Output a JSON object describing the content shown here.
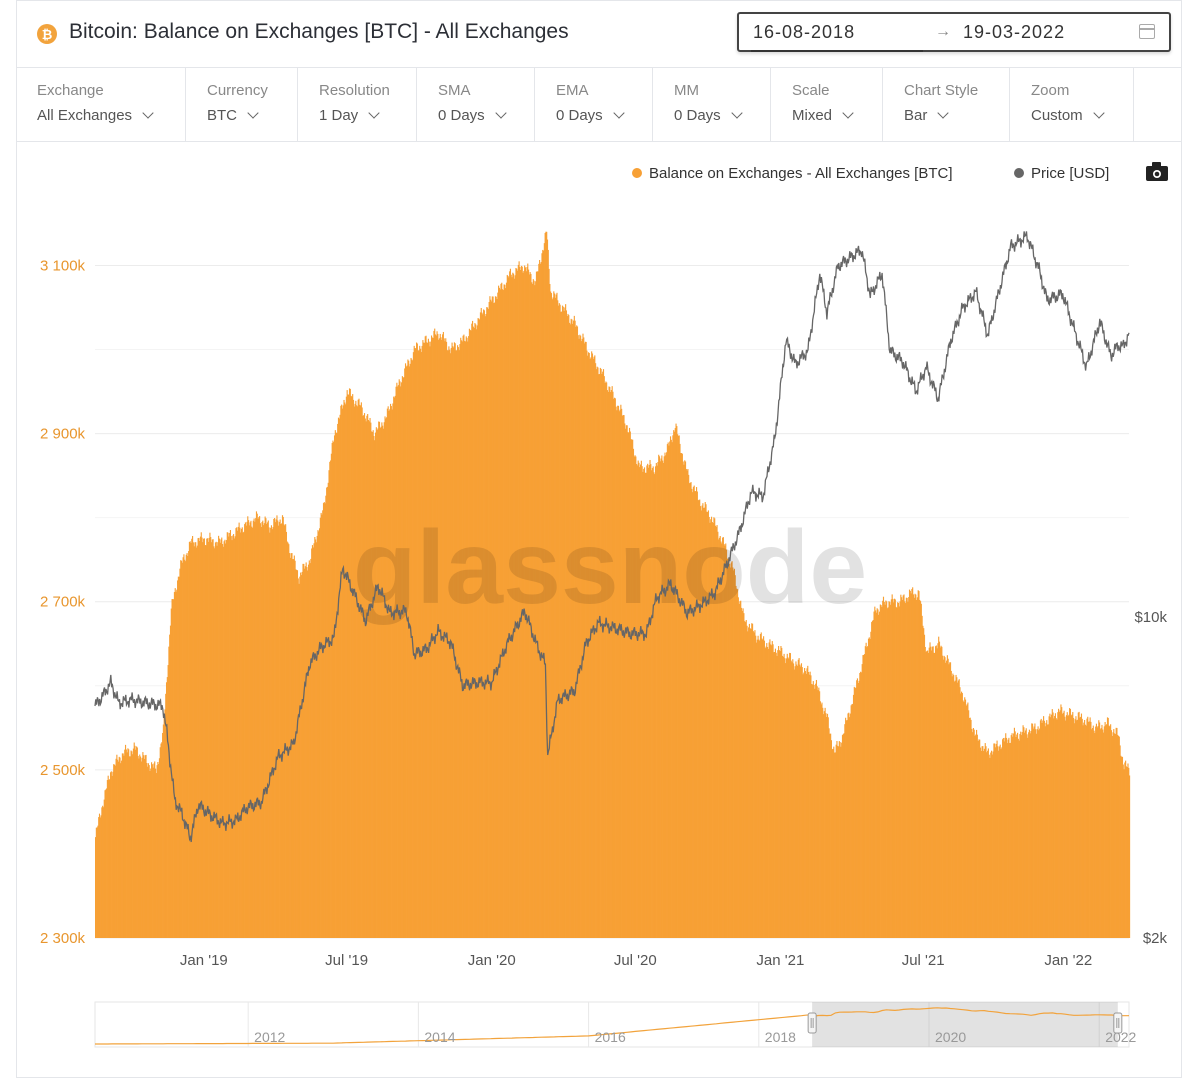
{
  "header": {
    "coin_glyph": "₿",
    "title": "Bitcoin: Balance on Exchanges [BTC] - All Exchanges",
    "date_from": "16-08-2018",
    "date_arrow": "→",
    "date_to": "19-03-2022"
  },
  "controls": [
    {
      "label": "Exchange",
      "value": "All Exchanges"
    },
    {
      "label": "Currency",
      "value": "BTC"
    },
    {
      "label": "Resolution",
      "value": "1 Day"
    },
    {
      "label": "SMA",
      "value": "0 Days"
    },
    {
      "label": "EMA",
      "value": "0 Days"
    },
    {
      "label": "MM",
      "value": "0 Days"
    },
    {
      "label": "Scale",
      "value": "Mixed"
    },
    {
      "label": "Chart Style",
      "value": "Bar"
    },
    {
      "label": "Zoom",
      "value": "Custom"
    }
  ],
  "watermark": "glassnode",
  "chart_data": {
    "type": "bar",
    "legend_position": "top-right",
    "grid": true,
    "left_axis": {
      "ticks": [
        2300000,
        2500000,
        2700000,
        2900000,
        3100000
      ],
      "tick_labels": [
        "2 300k",
        "2 500k",
        "2 700k",
        "2 900k",
        "3 100k"
      ],
      "range": [
        2300000,
        3160000
      ]
    },
    "right_axis": {
      "scale": "log",
      "ticks": [
        2000,
        10000
      ],
      "tick_labels": [
        "$2k",
        "$10k"
      ],
      "range": [
        2000,
        75000
      ]
    },
    "x_axis": {
      "range": [
        "2018-08-16",
        "2022-03-19"
      ],
      "ticks": [
        "2019-01-01",
        "2019-07-01",
        "2020-01-01",
        "2020-07-01",
        "2021-01-01",
        "2021-07-01",
        "2022-01-01"
      ],
      "tick_labels": [
        "Jan '19",
        "Jul '19",
        "Jan '20",
        "Jul '20",
        "Jan '21",
        "Jul '21",
        "Jan '22"
      ]
    },
    "series": [
      {
        "name": "Balance on Exchanges - All Exchanges [BTC]",
        "color": "#f7a035",
        "axis": "left",
        "points": [
          [
            "2018-08-16",
            2420000
          ],
          [
            "2018-08-25",
            2460000
          ],
          [
            "2018-09-05",
            2500000
          ],
          [
            "2018-09-20",
            2520000
          ],
          [
            "2018-10-05",
            2525000
          ],
          [
            "2018-10-20",
            2510000
          ],
          [
            "2018-11-01",
            2500000
          ],
          [
            "2018-11-10",
            2545000
          ],
          [
            "2018-11-20",
            2690000
          ],
          [
            "2018-12-01",
            2740000
          ],
          [
            "2018-12-15",
            2770000
          ],
          [
            "2019-01-01",
            2775000
          ],
          [
            "2019-01-20",
            2770000
          ],
          [
            "2019-02-05",
            2780000
          ],
          [
            "2019-02-20",
            2790000
          ],
          [
            "2019-03-10",
            2800000
          ],
          [
            "2019-03-25",
            2790000
          ],
          [
            "2019-04-10",
            2800000
          ],
          [
            "2019-04-20",
            2760000
          ],
          [
            "2019-05-01",
            2730000
          ],
          [
            "2019-05-15",
            2750000
          ],
          [
            "2019-06-01",
            2810000
          ],
          [
            "2019-06-15",
            2900000
          ],
          [
            "2019-07-01",
            2950000
          ],
          [
            "2019-07-20",
            2930000
          ],
          [
            "2019-08-05",
            2900000
          ],
          [
            "2019-08-20",
            2920000
          ],
          [
            "2019-09-05",
            2960000
          ],
          [
            "2019-09-25",
            3000000
          ],
          [
            "2019-10-10",
            3010000
          ],
          [
            "2019-10-25",
            3020000
          ],
          [
            "2019-11-10",
            3000000
          ],
          [
            "2019-11-25",
            3010000
          ],
          [
            "2019-12-10",
            3030000
          ],
          [
            "2019-12-25",
            3050000
          ],
          [
            "2020-01-10",
            3070000
          ],
          [
            "2020-01-25",
            3090000
          ],
          [
            "2020-02-10",
            3100000
          ],
          [
            "2020-02-25",
            3080000
          ],
          [
            "2020-03-05",
            3120000
          ],
          [
            "2020-03-10",
            3140000
          ],
          [
            "2020-03-15",
            3070000
          ],
          [
            "2020-03-30",
            3050000
          ],
          [
            "2020-04-15",
            3030000
          ],
          [
            "2020-05-01",
            3000000
          ],
          [
            "2020-05-20",
            2970000
          ],
          [
            "2020-06-05",
            2940000
          ],
          [
            "2020-06-20",
            2910000
          ],
          [
            "2020-07-05",
            2860000
          ],
          [
            "2020-07-25",
            2860000
          ],
          [
            "2020-08-10",
            2880000
          ],
          [
            "2020-08-20",
            2910000
          ],
          [
            "2020-09-05",
            2850000
          ],
          [
            "2020-09-20",
            2820000
          ],
          [
            "2020-10-05",
            2800000
          ],
          [
            "2020-10-20",
            2770000
          ],
          [
            "2020-11-01",
            2740000
          ],
          [
            "2020-11-15",
            2680000
          ],
          [
            "2020-12-01",
            2660000
          ],
          [
            "2020-12-15",
            2650000
          ],
          [
            "2021-01-01",
            2640000
          ],
          [
            "2021-01-15",
            2630000
          ],
          [
            "2021-02-01",
            2620000
          ],
          [
            "2021-02-15",
            2600000
          ],
          [
            "2021-03-01",
            2560000
          ],
          [
            "2021-03-10",
            2520000
          ],
          [
            "2021-03-20",
            2540000
          ],
          [
            "2021-04-01",
            2580000
          ],
          [
            "2021-04-15",
            2630000
          ],
          [
            "2021-05-01",
            2690000
          ],
          [
            "2021-05-15",
            2700000
          ],
          [
            "2021-06-01",
            2700000
          ],
          [
            "2021-06-15",
            2710000
          ],
          [
            "2021-06-25",
            2710000
          ],
          [
            "2021-07-05",
            2640000
          ],
          [
            "2021-07-20",
            2650000
          ],
          [
            "2021-08-05",
            2620000
          ],
          [
            "2021-08-20",
            2590000
          ],
          [
            "2021-09-05",
            2540000
          ],
          [
            "2021-09-20",
            2520000
          ],
          [
            "2021-10-05",
            2530000
          ],
          [
            "2021-10-20",
            2540000
          ],
          [
            "2021-11-05",
            2545000
          ],
          [
            "2021-11-20",
            2550000
          ],
          [
            "2021-12-05",
            2560000
          ],
          [
            "2021-12-20",
            2570000
          ],
          [
            "2022-01-05",
            2565000
          ],
          [
            "2022-01-20",
            2560000
          ],
          [
            "2022-02-05",
            2550000
          ],
          [
            "2022-02-20",
            2555000
          ],
          [
            "2022-03-05",
            2540000
          ],
          [
            "2022-03-12",
            2505000
          ],
          [
            "2022-03-19",
            2500000
          ]
        ]
      },
      {
        "name": "Price [USD]",
        "color": "#666666",
        "axis": "right",
        "points": [
          [
            "2018-08-16",
            6400
          ],
          [
            "2018-08-25",
            6700
          ],
          [
            "2018-09-05",
            7200
          ],
          [
            "2018-09-15",
            6500
          ],
          [
            "2018-10-01",
            6600
          ],
          [
            "2018-10-20",
            6500
          ],
          [
            "2018-11-10",
            6400
          ],
          [
            "2018-11-15",
            5600
          ],
          [
            "2018-11-25",
            4000
          ],
          [
            "2018-12-05",
            3700
          ],
          [
            "2018-12-15",
            3300
          ],
          [
            "2018-12-25",
            3900
          ],
          [
            "2019-01-10",
            3700
          ],
          [
            "2019-01-25",
            3550
          ],
          [
            "2019-02-10",
            3600
          ],
          [
            "2019-02-25",
            3850
          ],
          [
            "2019-03-15",
            3950
          ],
          [
            "2019-04-05",
            4950
          ],
          [
            "2019-04-25",
            5300
          ],
          [
            "2019-05-15",
            7900
          ],
          [
            "2019-05-30",
            8600
          ],
          [
            "2019-06-15",
            9000
          ],
          [
            "2019-06-26",
            12800
          ],
          [
            "2019-07-10",
            11300
          ],
          [
            "2019-07-25",
            9800
          ],
          [
            "2019-08-10",
            11700
          ],
          [
            "2019-08-25",
            10200
          ],
          [
            "2019-09-15",
            10300
          ],
          [
            "2019-09-25",
            8300
          ],
          [
            "2019-10-10",
            8500
          ],
          [
            "2019-10-25",
            9300
          ],
          [
            "2019-11-10",
            8800
          ],
          [
            "2019-11-25",
            7100
          ],
          [
            "2019-12-15",
            7200
          ],
          [
            "2020-01-01",
            7200
          ],
          [
            "2020-01-20",
            8700
          ],
          [
            "2020-02-12",
            10300
          ],
          [
            "2020-02-28",
            8600
          ],
          [
            "2020-03-09",
            7900
          ],
          [
            "2020-03-12",
            5000
          ],
          [
            "2020-03-25",
            6600
          ],
          [
            "2020-04-15",
            6900
          ],
          [
            "2020-04-30",
            8800
          ],
          [
            "2020-05-15",
            9700
          ],
          [
            "2020-06-01",
            9500
          ],
          [
            "2020-06-25",
            9200
          ],
          [
            "2020-07-15",
            9200
          ],
          [
            "2020-07-28",
            11000
          ],
          [
            "2020-08-15",
            11800
          ],
          [
            "2020-09-05",
            10200
          ],
          [
            "2020-09-25",
            10700
          ],
          [
            "2020-10-10",
            11300
          ],
          [
            "2020-10-25",
            13000
          ],
          [
            "2020-11-10",
            15300
          ],
          [
            "2020-11-25",
            18700
          ],
          [
            "2020-12-10",
            18300
          ],
          [
            "2020-12-25",
            24500
          ],
          [
            "2021-01-08",
            40000
          ],
          [
            "2021-01-20",
            35500
          ],
          [
            "2021-02-05",
            38000
          ],
          [
            "2021-02-20",
            56000
          ],
          [
            "2021-03-01",
            46000
          ],
          [
            "2021-03-15",
            58000
          ],
          [
            "2021-04-14",
            63000
          ],
          [
            "2021-04-25",
            50000
          ],
          [
            "2021-05-10",
            56000
          ],
          [
            "2021-05-20",
            38000
          ],
          [
            "2021-06-05",
            36000
          ],
          [
            "2021-06-22",
            31000
          ],
          [
            "2021-07-05",
            35000
          ],
          [
            "2021-07-20",
            29800
          ],
          [
            "2021-08-05",
            40000
          ],
          [
            "2021-08-20",
            47000
          ],
          [
            "2021-09-06",
            51000
          ],
          [
            "2021-09-21",
            41000
          ],
          [
            "2021-10-05",
            51000
          ],
          [
            "2021-10-20",
            64000
          ],
          [
            "2021-11-10",
            67500
          ],
          [
            "2021-11-25",
            57000
          ],
          [
            "2021-12-05",
            49000
          ],
          [
            "2021-12-25",
            50500
          ],
          [
            "2022-01-10",
            41500
          ],
          [
            "2022-01-24",
            35000
          ],
          [
            "2022-02-10",
            44000
          ],
          [
            "2022-02-24",
            37000
          ],
          [
            "2022-03-05",
            39000
          ],
          [
            "2022-03-12",
            38800
          ],
          [
            "2022-03-19",
            41500
          ]
        ]
      }
    ],
    "navigator": {
      "x_tick_labels": [
        "2012",
        "2014",
        "2016",
        "2018",
        "2020",
        "2022"
      ],
      "x_tick_years": [
        2012,
        2014,
        2016,
        2018,
        2020,
        2022
      ],
      "range_years": [
        2010.2,
        2022.35
      ],
      "selection": [
        "2018-08-16",
        "2022-03-19"
      ]
    }
  }
}
